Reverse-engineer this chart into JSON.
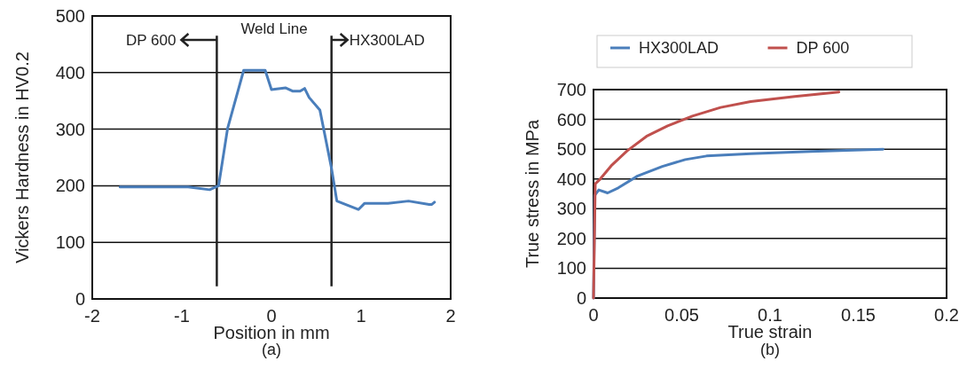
{
  "chart_data": [
    {
      "type": "line",
      "xlabel": "Position in mm",
      "ylabel": "Vickers Hardness in HV0.2",
      "xlim": [
        -2,
        2
      ],
      "xticks": [
        -2,
        -1,
        0,
        1,
        2
      ],
      "ylim": [
        0,
        500
      ],
      "yticks": [
        0,
        100,
        200,
        300,
        400,
        500
      ],
      "grid": "y",
      "legend": false,
      "series": [
        {
          "color": "#4a7ebb",
          "x": [
            -1.69,
            -0.93,
            -0.69,
            -0.59,
            -0.49,
            -0.31,
            -0.07,
            0.0,
            0.16,
            0.24,
            0.32,
            0.37,
            0.42,
            0.54,
            0.67,
            0.73,
            0.97,
            1.04,
            1.3,
            1.53,
            1.76,
            1.79,
            1.82
          ],
          "values": [
            198,
            198,
            193,
            200,
            301,
            404,
            404,
            370,
            373,
            367,
            367,
            372,
            356,
            334,
            231,
            173,
            158,
            169,
            169,
            173,
            167,
            167,
            171
          ]
        }
      ],
      "ref_lines": [
        {
          "axis": "x",
          "value": -0.61,
          "color": "#222222"
        },
        {
          "axis": "x",
          "value": 0.67,
          "color": "#222222"
        }
      ],
      "annotations": [
        "Weld Line",
        "DP 600",
        "HX300LAD",
        "(a)"
      ]
    },
    {
      "type": "line",
      "xlabel": "True strain",
      "ylabel": "True stress in MPa",
      "xlim": [
        0,
        0.2
      ],
      "xticks": [
        0,
        0.05,
        0.1,
        0.15,
        0.2
      ],
      "ylim": [
        0,
        700
      ],
      "yticks": [
        0,
        100,
        200,
        300,
        400,
        500,
        600,
        700
      ],
      "grid": "y",
      "legend": "top",
      "series": [
        {
          "name": "HX300LAD",
          "color": "#4a7ebb",
          "x": [
            0,
            0.0007,
            0.003,
            0.008,
            0.014,
            0.025,
            0.039,
            0.052,
            0.064,
            0.089,
            0.123,
            0.164
          ],
          "values": [
            0,
            345,
            363,
            353,
            370,
            410,
            442,
            465,
            477,
            485,
            492,
            500
          ]
        },
        {
          "name": "DP 600",
          "color": "#c0504d",
          "x": [
            0,
            0.001,
            0.0037,
            0.01,
            0.019,
            0.03,
            0.042,
            0.056,
            0.072,
            0.089,
            0.114,
            0.139
          ],
          "values": [
            0,
            384,
            399,
            444,
            494,
            543,
            578,
            611,
            640,
            660,
            677,
            692
          ]
        }
      ],
      "annotations": [
        "(b)"
      ]
    }
  ]
}
